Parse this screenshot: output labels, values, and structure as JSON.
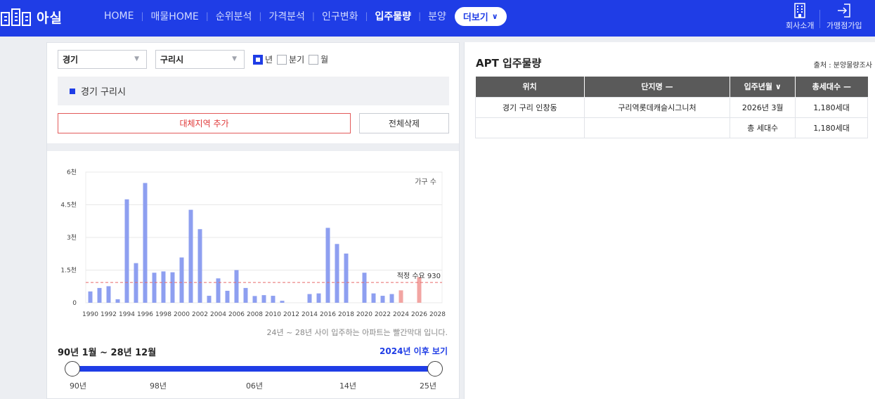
{
  "nav": {
    "logo_text": "아실",
    "menu": [
      {
        "label": "HOME",
        "active": false
      },
      {
        "label": "매물HOME",
        "active": false
      },
      {
        "label": "순위분석",
        "active": false
      },
      {
        "label": "가격분석",
        "active": false
      },
      {
        "label": "인구변화",
        "active": false
      },
      {
        "label": "입주물량",
        "active": true
      },
      {
        "label": "분양",
        "active": false
      }
    ],
    "more_label": "더보기",
    "company_label": "회사소개",
    "join_label": "가맹점가입",
    "colors": {
      "brand": "#1f3de6"
    }
  },
  "filters": {
    "province": "경기",
    "city": "구리시",
    "periods": [
      {
        "label": "년",
        "checked": true
      },
      {
        "label": "분기",
        "checked": false
      },
      {
        "label": "월",
        "checked": false
      }
    ]
  },
  "region_tag": "경기 구리시",
  "buttons": {
    "add_region": "대체지역 추가",
    "delete_all": "전체삭제"
  },
  "chart_data": {
    "type": "bar",
    "legend_label": "가구 수",
    "categories": [
      1990,
      1991,
      1992,
      1993,
      1994,
      1995,
      1996,
      1997,
      1998,
      1999,
      2000,
      2001,
      2002,
      2003,
      2004,
      2005,
      2006,
      2007,
      2008,
      2009,
      2010,
      2011,
      2012,
      2013,
      2014,
      2015,
      2016,
      2017,
      2018,
      2019,
      2020,
      2021,
      2022,
      2023,
      2024,
      2025,
      2026,
      2027,
      2028
    ],
    "values": [
      520,
      680,
      760,
      160,
      4750,
      1820,
      5500,
      1380,
      1440,
      1400,
      2080,
      4270,
      3380,
      320,
      1120,
      550,
      1500,
      680,
      310,
      350,
      320,
      90,
      0,
      0,
      400,
      430,
      3440,
      2700,
      2260,
      0,
      1380,
      430,
      320,
      400,
      570,
      0,
      1180,
      0,
      0
    ],
    "x_tick_labels": [
      "1990",
      "1992",
      "1994",
      "1996",
      "1998",
      "2000",
      "2002",
      "2004",
      "2006",
      "2008",
      "2010",
      "2012",
      "2014",
      "2016",
      "2018",
      "2020",
      "2022",
      "2024",
      "2026",
      "2028"
    ],
    "y_tick_labels": [
      "0",
      "1.5천",
      "3천",
      "4.5천",
      "6천"
    ],
    "y_ticks": [
      0,
      1500,
      3000,
      4500,
      6000
    ],
    "ylim": [
      0,
      6000
    ],
    "reference_line": {
      "value": 930,
      "label": "적정 수요 930"
    },
    "highlight_from": 2024,
    "colors": {
      "normal": "#8e9ff0",
      "highlight": "#f2a5a2",
      "reference": "#e66a6a",
      "grid": "#e8e8e8"
    },
    "grid": true,
    "legend_placement": "top-right"
  },
  "chart_note": "24년 ~ 28년 사이 입주하는 아파트는 빨간막대 입니다.",
  "range": {
    "label": "90년 1월 ~ 28년 12월",
    "after_link": "2024년 이후 보기",
    "slider_labels": [
      "90년",
      "98년",
      "06년",
      "14년",
      "25년"
    ]
  },
  "cutoff_text": "...",
  "right": {
    "title": "APT 입주물량",
    "source": "출처 : 분양물량조사",
    "columns": [
      "위치",
      "단지명 —",
      "입주년월 ∨",
      "총세대수 —"
    ],
    "rows": [
      [
        "경기 구리 인창동",
        "구리역롯데캐슬시그니처",
        "2026년 3월",
        "1,180세대"
      ],
      [
        "",
        "",
        "총 세대수",
        "1,180세대"
      ]
    ]
  }
}
